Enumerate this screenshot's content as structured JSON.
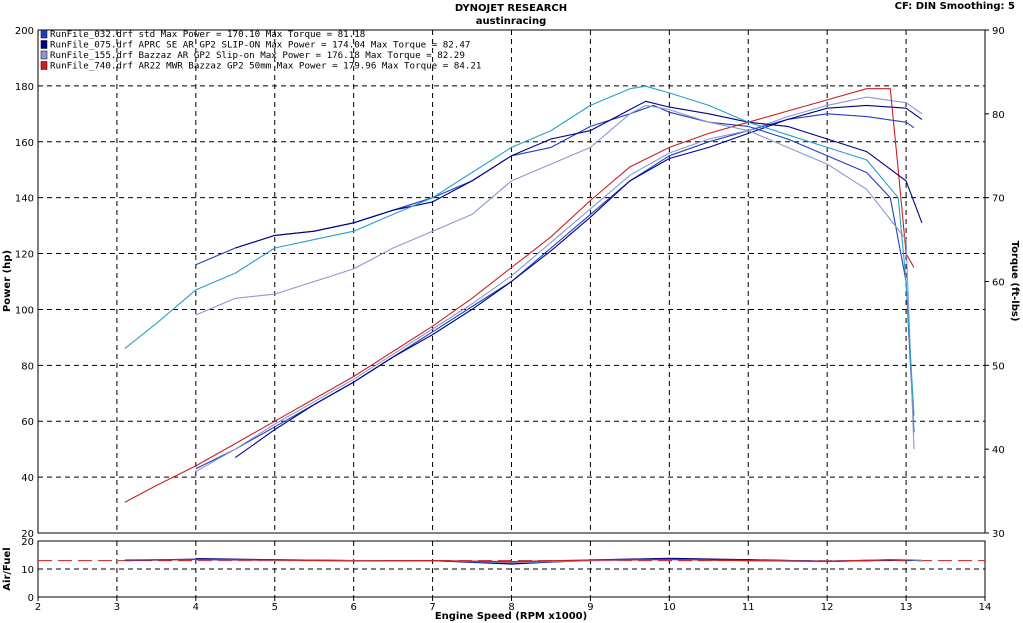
{
  "header": {
    "title": "DYNOJET RESEARCH",
    "subtitle": "austinracing",
    "settings": "CF: DIN  Smoothing: 5"
  },
  "chart_data": [
    {
      "type": "line",
      "xlabel": "Engine Speed (RPM x1000)",
      "ylabel": "Power (hp)",
      "y2label": "Torque (ft-lbs)",
      "xlim": [
        2,
        14
      ],
      "ylim": [
        20,
        200
      ],
      "y2lim": [
        30,
        90
      ],
      "xticks": [
        "2",
        "3",
        "4",
        "5",
        "6",
        "7",
        "8",
        "9",
        "10",
        "11",
        "12",
        "13",
        "14"
      ],
      "yticks": [
        "20",
        "40",
        "60",
        "80",
        "100",
        "120",
        "140",
        "160",
        "180",
        "200"
      ],
      "y2ticks": [
        "30",
        "40",
        "50",
        "60",
        "70",
        "80",
        "90"
      ],
      "grid": true,
      "legend_position": "top-left",
      "legend": [
        {
          "label": "RunFile_032.drf std Max Power = 170.10     Max Torque = 81.18",
          "color": "#1f3fbf"
        },
        {
          "label": "RunFile_075.drf APRC SE AR GP2 SLIP-ON Max Power = 174.04     Max Torque = 82.47",
          "color": "#00008b"
        },
        {
          "label": "RunFile_155.drf Bazzaz AR GP2 Slip-on Max Power = 176.18     Max Torque = 82.29",
          "color": "#8a9ad0"
        },
        {
          "label": "RunFile_740.drf AR22 MWR Bazzaz GP2 50mm Max Power = 179.96     Max Torque = 84.21",
          "color": "#cc1f1f"
        }
      ],
      "series": [
        {
          "name": "RunFile_032.drf std",
          "kind": "power",
          "color": "#1f3fbf",
          "x": [
            4.0,
            4.5,
            5.0,
            5.5,
            6.0,
            6.5,
            7.0,
            7.5,
            8.0,
            8.5,
            9.0,
            9.5,
            10.0,
            10.5,
            11.0,
            11.5,
            12.0,
            12.5,
            13.0,
            13.1
          ],
          "y": [
            43,
            50,
            58,
            66,
            74,
            83,
            92,
            101,
            110,
            122,
            134,
            146,
            155,
            160,
            164,
            168,
            170,
            169,
            167,
            165
          ]
        },
        {
          "name": "RunFile_075.drf APRC SE AR GP2 SLIP-ON",
          "kind": "power",
          "color": "#00008b",
          "x": [
            4.5,
            5.0,
            5.5,
            6.0,
            6.5,
            7.0,
            7.5,
            8.0,
            8.5,
            9.0,
            9.5,
            10.0,
            10.5,
            11.0,
            11.5,
            12.0,
            12.5,
            13.0,
            13.2
          ],
          "y": [
            47,
            57,
            66,
            74,
            83,
            91,
            100,
            110,
            121,
            133,
            146,
            154,
            158,
            163,
            168,
            172,
            173,
            172,
            168
          ]
        },
        {
          "name": "RunFile_155.drf Bazzaz AR GP2 Slip-on",
          "kind": "power",
          "color": "#8a9ad0",
          "x": [
            4.0,
            4.5,
            5.0,
            5.5,
            6.0,
            6.5,
            7.0,
            7.5,
            8.0,
            8.5,
            9.0,
            9.5,
            10.0,
            10.5,
            11.0,
            11.5,
            12.0,
            12.5,
            13.0,
            13.2
          ],
          "y": [
            42,
            50,
            59,
            67,
            75,
            84,
            93,
            102,
            112,
            124,
            136,
            148,
            156,
            161,
            164,
            169,
            173,
            176,
            174,
            170
          ]
        },
        {
          "name": "RunFile_740.drf AR22 MWR Bazzaz GP2 50mm",
          "kind": "power",
          "color": "#cc1f1f",
          "x": [
            3.1,
            3.5,
            4.0,
            4.5,
            5.0,
            5.5,
            6.0,
            6.5,
            7.0,
            7.5,
            8.0,
            8.5,
            9.0,
            9.5,
            10.0,
            10.5,
            11.0,
            11.5,
            12.0,
            12.5,
            12.8,
            12.9,
            13.0,
            13.1
          ],
          "y": [
            31,
            37,
            44,
            52,
            60,
            68,
            76,
            85,
            94,
            104,
            115,
            126,
            139,
            151,
            158,
            163,
            167,
            171,
            175,
            179,
            179,
            150,
            120,
            115
          ]
        },
        {
          "name": "RunFile_032.drf std",
          "kind": "torque",
          "color": "#1f3fbf",
          "x": [
            4.0,
            4.5,
            5.0,
            5.5,
            6.0,
            6.5,
            7.0,
            7.5,
            8.0,
            8.5,
            9.0,
            9.5,
            9.8,
            10.0,
            10.5,
            11.0,
            11.5,
            12.0,
            12.5,
            12.8,
            13.0,
            13.1
          ],
          "y": [
            62,
            64,
            65.5,
            66,
            67,
            68.5,
            70,
            72,
            75,
            76,
            78.5,
            80,
            81,
            80.2,
            79,
            78.5,
            77,
            75,
            73,
            70,
            60,
            42
          ]
        },
        {
          "name": "RunFile_075.drf APRC SE AR GP2 SLIP-ON",
          "kind": "torque",
          "color": "#00008b",
          "x": [
            4.5,
            5.0,
            5.5,
            6.0,
            6.5,
            7.0,
            7.5,
            8.0,
            8.5,
            9.0,
            9.5,
            9.7,
            10.0,
            10.5,
            11.0,
            11.5,
            12.0,
            12.5,
            13.0,
            13.2
          ],
          "y": [
            64,
            65.5,
            66,
            67,
            68.5,
            69.5,
            72,
            75,
            77,
            78,
            80.5,
            81.5,
            80.8,
            80,
            79,
            78.5,
            77,
            75.5,
            72,
            67
          ]
        },
        {
          "name": "RunFile_155.drf Bazzaz AR GP2 Slip-on",
          "kind": "torque",
          "color": "#8a9ad0",
          "x": [
            4.0,
            4.5,
            5.0,
            5.5,
            6.0,
            6.5,
            7.0,
            7.5,
            8.0,
            8.5,
            9.0,
            9.5,
            9.7,
            10.0,
            10.5,
            11.0,
            11.5,
            12.0,
            12.5,
            13.0,
            13.1
          ],
          "y": [
            56,
            58,
            58.5,
            60,
            61.5,
            64,
            66,
            68,
            72,
            74,
            76,
            80,
            81,
            80.5,
            79,
            78,
            76,
            74,
            71,
            65,
            40
          ]
        },
        {
          "name": "RunFile_740.drf AR22 MWR Bazzaz GP2 50mm",
          "kind": "torque",
          "color": "#27a0c8",
          "x": [
            3.1,
            3.5,
            4.0,
            4.5,
            5.0,
            5.5,
            6.0,
            6.5,
            7.0,
            7.5,
            8.0,
            8.5,
            9.0,
            9.5,
            9.7,
            10.0,
            10.5,
            11.0,
            11.5,
            12.0,
            12.5,
            12.9,
            13.0,
            13.1
          ],
          "y": [
            52,
            55,
            59,
            61,
            64,
            65,
            66,
            68,
            70,
            73,
            76,
            78,
            81,
            83,
            83.3,
            82.5,
            81,
            79,
            77.5,
            76,
            74.5,
            70,
            60,
            44
          ]
        }
      ]
    },
    {
      "type": "line",
      "ylabel": "Air/Fuel",
      "xlim": [
        2,
        14
      ],
      "ylim": [
        0,
        20
      ],
      "yticks": [
        "0",
        "10",
        "20"
      ],
      "grid": true,
      "reference_line": 13.0,
      "series": [
        {
          "name": "RunFile_032.drf std",
          "color": "#1f3fbf",
          "x": [
            3.1,
            4,
            5,
            6,
            7,
            8,
            9,
            10,
            11,
            12,
            13,
            13.2
          ],
          "y": [
            13.0,
            13.5,
            13.2,
            13.0,
            13.0,
            12.0,
            13.0,
            13.6,
            13.2,
            12.8,
            13.3,
            13.0
          ]
        },
        {
          "name": "RunFile_075.drf APRC SE AR GP2 SLIP-ON",
          "color": "#00008b",
          "x": [
            4,
            5,
            6,
            7,
            8,
            9,
            10,
            11,
            12,
            13,
            13.2
          ],
          "y": [
            13.7,
            13.3,
            13.0,
            13.0,
            11.8,
            13.2,
            13.8,
            13.3,
            12.7,
            13.2,
            13.0
          ]
        },
        {
          "name": "RunFile_155.drf Bazzaz AR GP2 Slip-on",
          "color": "#8a9ad0",
          "x": [
            4,
            5,
            6,
            7,
            8,
            9,
            10,
            11,
            12,
            13,
            13.2
          ],
          "y": [
            13.3,
            13.1,
            13.0,
            13.0,
            12.3,
            13.0,
            13.4,
            13.0,
            12.8,
            13.4,
            13.1
          ]
        },
        {
          "name": "RunFile_740.drf AR22 MWR Bazzaz GP2 50mm",
          "color": "#cc1f1f",
          "x": [
            3.1,
            4,
            5,
            6,
            7,
            8,
            9,
            10,
            11,
            12,
            12.8,
            13.0
          ],
          "y": [
            13.2,
            13.4,
            13.2,
            12.9,
            13.0,
            12.6,
            13.2,
            13.4,
            13.0,
            12.7,
            13.3,
            13.0
          ]
        }
      ]
    }
  ]
}
